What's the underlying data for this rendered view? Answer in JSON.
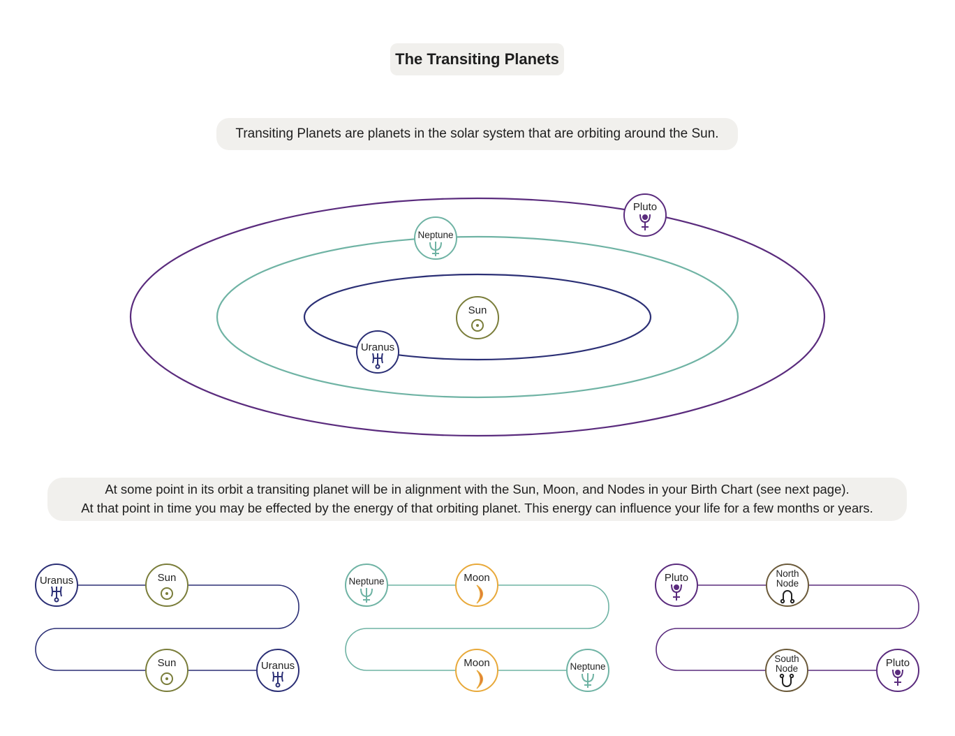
{
  "title": "The Transiting Planets",
  "intro": "Transiting Planets are planets in the solar system that are orbiting around the Sun.",
  "note": {
    "line1": "At some point in its orbit a transiting planet will be in alignment with the Sun, Moon, and Nodes in your Birth Chart (see next page).",
    "line2": "At that point in time you may be effected by the energy of that orbiting planet. This energy can influence your life for a few months or years."
  },
  "orbit": {
    "sun": {
      "label": "Sun",
      "glyph": "☉"
    },
    "uranus": {
      "label": "Uranus",
      "glyph": "♅"
    },
    "neptune": {
      "label": "Neptune",
      "glyph": "♆"
    },
    "pluto": {
      "label": "Pluto",
      "glyph": "♇"
    }
  },
  "transits": [
    {
      "start": "Uranus",
      "start_glyph": "♅",
      "point1": "Sun",
      "point1_glyph": "☉",
      "point2": "Sun",
      "point2_glyph": "☉",
      "end": "Uranus",
      "end_glyph": "♅"
    },
    {
      "start": "Neptune",
      "start_glyph": "♆",
      "point1": "Moon",
      "point2": "Moon",
      "end": "Neptune",
      "end_glyph": "♆"
    },
    {
      "start": "Pluto",
      "start_glyph": "♇",
      "point1_line1": "North",
      "point1_line2": "Node",
      "point1_glyph": "☊",
      "point2_line1": "South",
      "point2_line2": "Node",
      "point2_glyph": "☋",
      "end": "Pluto",
      "end_glyph": "♇"
    }
  ],
  "colors": {
    "uranus": "#2b2f75",
    "neptune": "#6fb3a4",
    "pluto": "#5a2b7d",
    "sun": "#7a7d3a",
    "moon_ring": "#e8a93a",
    "moon_fill": "#e07a3a",
    "node": "#6b5a3a"
  }
}
